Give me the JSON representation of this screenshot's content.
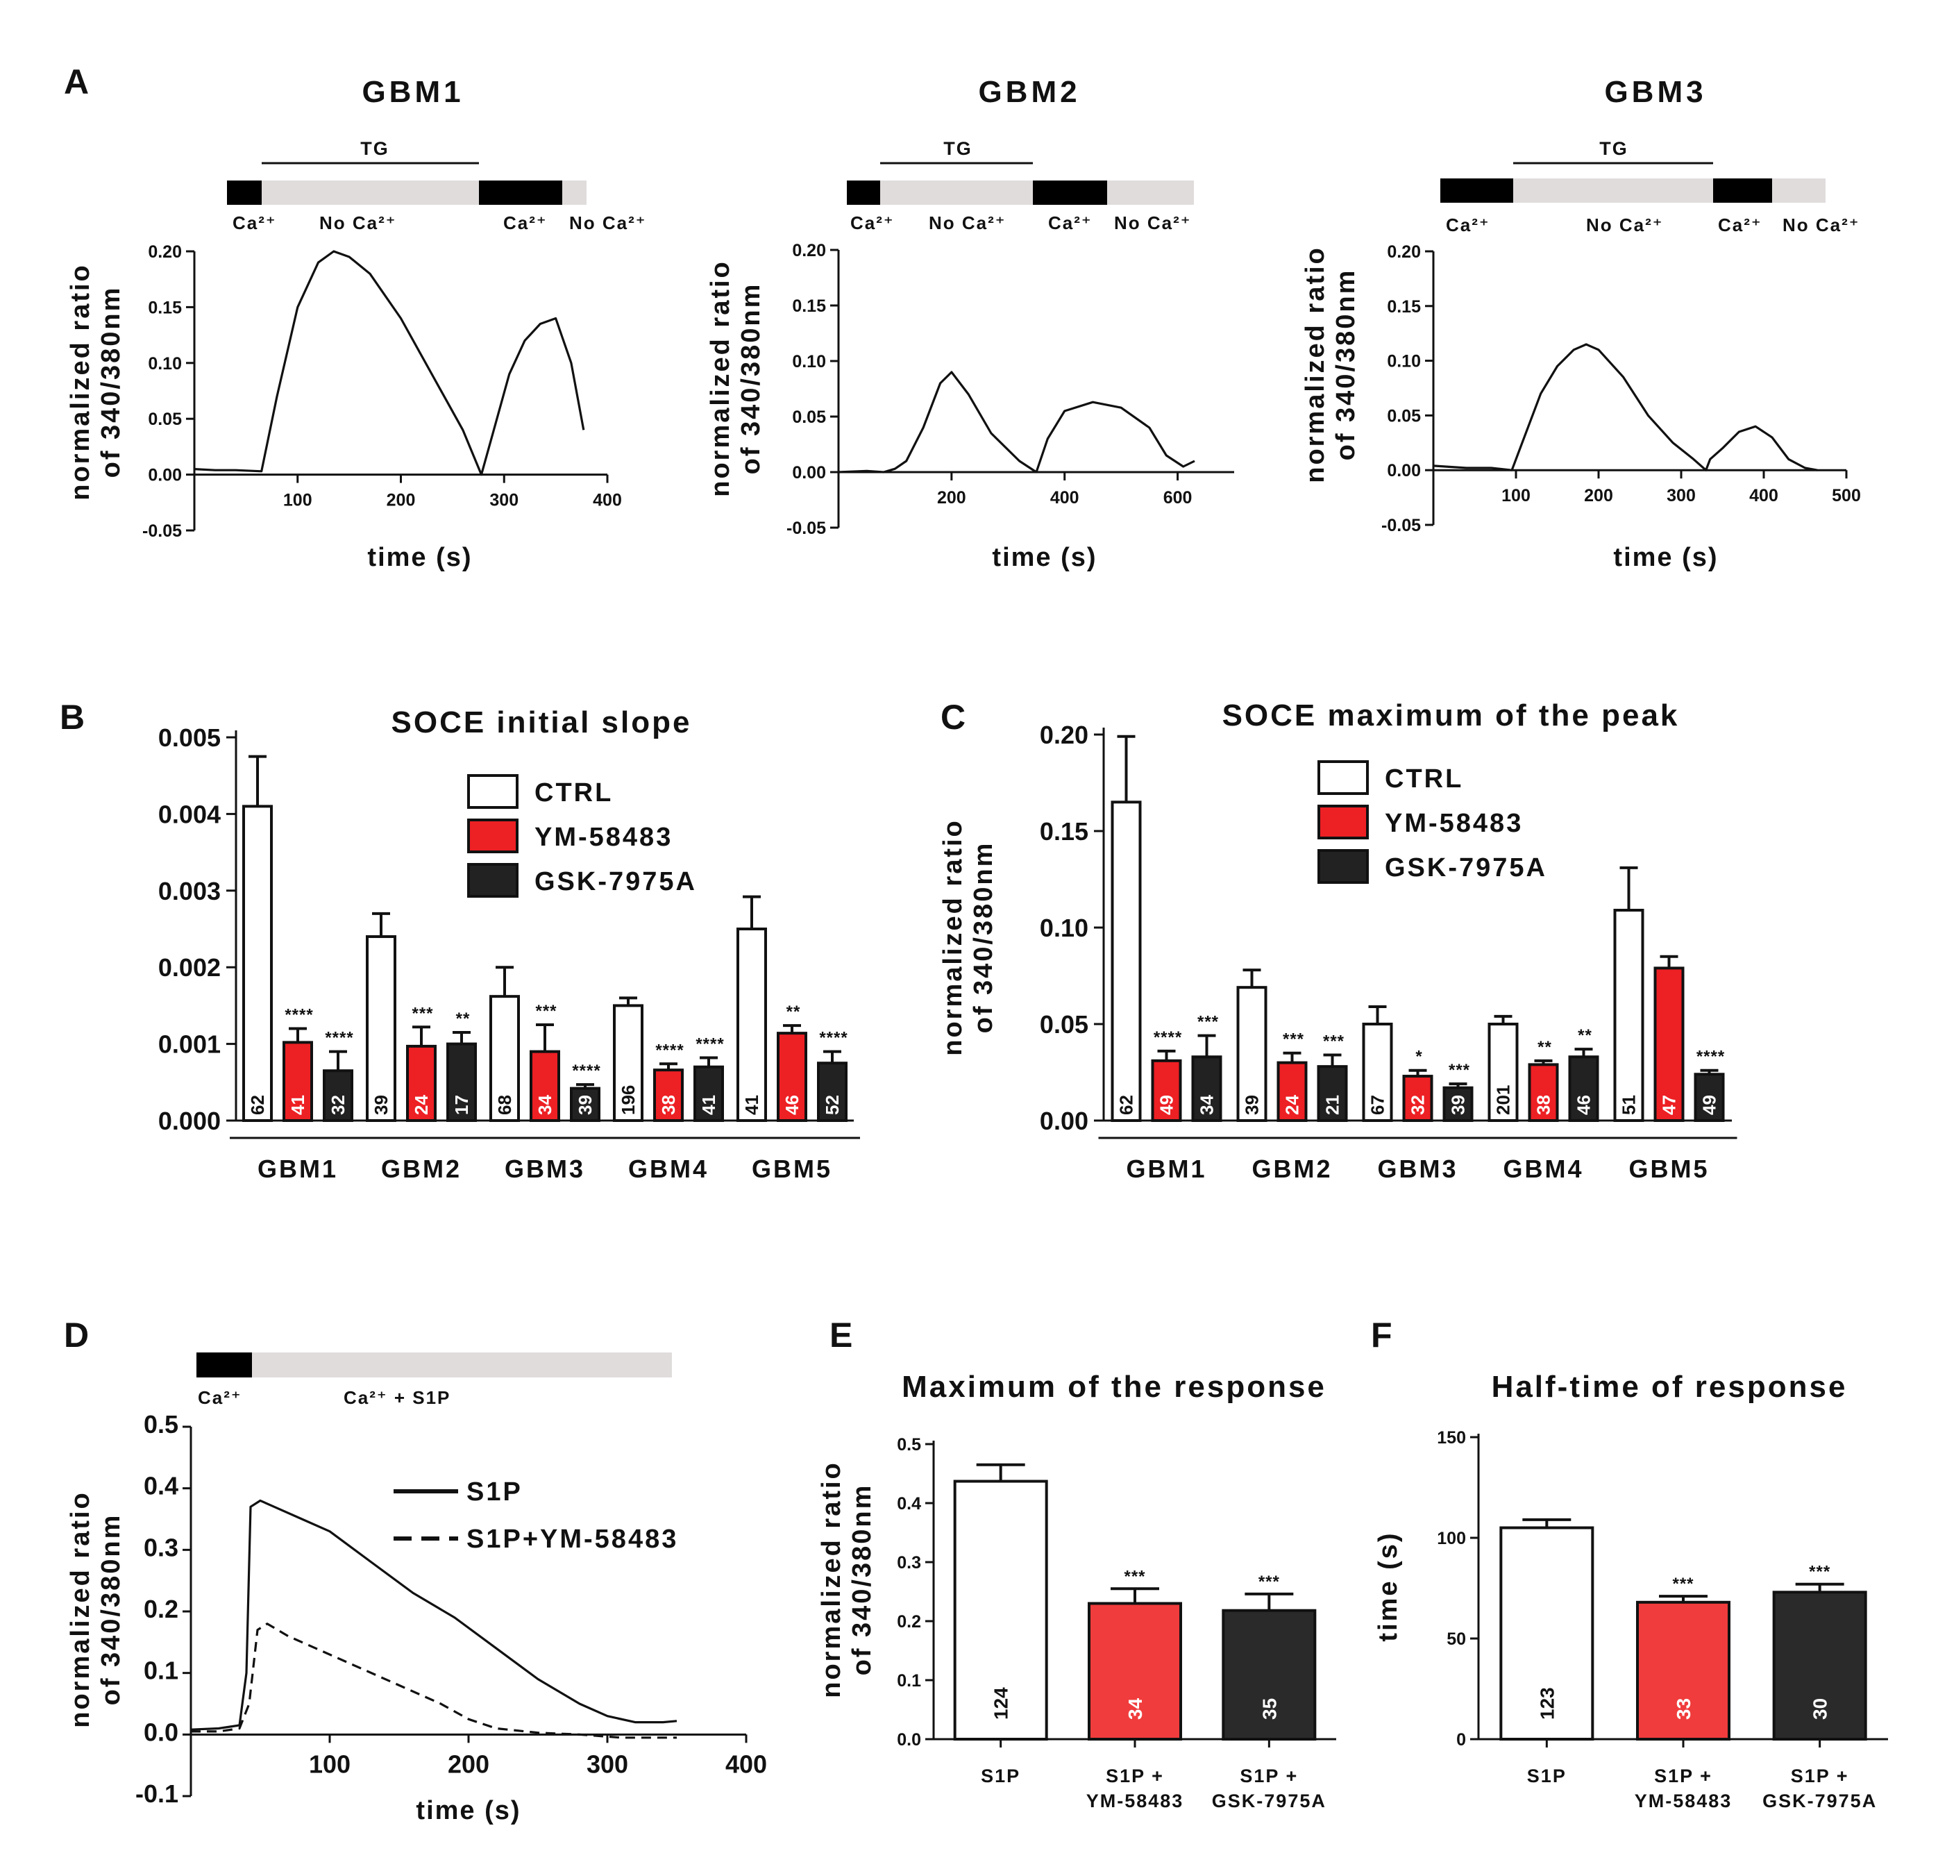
{
  "panel_labels": [
    "A",
    "B",
    "C",
    "D",
    "E",
    "F"
  ],
  "chart_data": [
    {
      "id": "A1",
      "type": "line",
      "title": "GBM1",
      "ylabel_lines": [
        "normalized ratio",
        "of 340/380nm"
      ],
      "xlabel": "time (s)",
      "ylim": [
        -0.05,
        0.2
      ],
      "xlim": [
        0,
        400
      ],
      "yticks": [
        "0.20",
        "0.15",
        "0.10",
        "0.05",
        "0.00",
        "-0.05"
      ],
      "ytick_values": [
        0.2,
        0.15,
        0.1,
        0.05,
        0,
        -0.05
      ],
      "xticks": [
        "100",
        "200",
        "300",
        "400"
      ],
      "xtick_values": [
        100,
        200,
        300,
        400
      ],
      "protocol": {
        "tg": "TG",
        "labels": [
          "Ca²⁺",
          "No Ca²⁺",
          "Ca²⁺",
          "No Ca²⁺"
        ]
      },
      "series": [
        {
          "name": "trace",
          "x": [
            0,
            20,
            40,
            65,
            80,
            100,
            120,
            135,
            150,
            170,
            200,
            230,
            260,
            278,
            290,
            305,
            320,
            335,
            350,
            365,
            377
          ],
          "y": [
            0.005,
            0.004,
            0.004,
            0.003,
            0.07,
            0.15,
            0.19,
            0.2,
            0.195,
            0.18,
            0.14,
            0.09,
            0.04,
            0.0,
            0.04,
            0.09,
            0.12,
            0.135,
            0.14,
            0.1,
            0.04
          ]
        }
      ]
    },
    {
      "id": "A2",
      "type": "line",
      "title": "GBM2",
      "ylabel_lines": [
        "normalized ratio",
        "of 340/380nm"
      ],
      "xlabel": "time (s)",
      "ylim": [
        -0.05,
        0.2
      ],
      "xlim": [
        0,
        700
      ],
      "yticks": [
        "0.20",
        "0.15",
        "0.10",
        "0.05",
        "0.00",
        "-0.05"
      ],
      "ytick_values": [
        0.2,
        0.15,
        0.1,
        0.05,
        0,
        -0.05
      ],
      "xticks": [
        "200",
        "400",
        "600"
      ],
      "xtick_values": [
        200,
        400,
        600
      ],
      "protocol": {
        "tg": "TG",
        "labels": [
          "Ca²⁺",
          "No Ca²⁺",
          "Ca²⁺",
          "No Ca²⁺"
        ]
      },
      "series": [
        {
          "name": "trace",
          "x": [
            0,
            50,
            80,
            100,
            120,
            150,
            180,
            200,
            230,
            270,
            320,
            350,
            370,
            400,
            450,
            500,
            550,
            580,
            610,
            630
          ],
          "y": [
            0.0,
            0.001,
            0.0,
            0.003,
            0.01,
            0.04,
            0.08,
            0.09,
            0.07,
            0.035,
            0.01,
            0.0,
            0.03,
            0.055,
            0.063,
            0.058,
            0.04,
            0.015,
            0.005,
            0.01
          ]
        }
      ]
    },
    {
      "id": "A3",
      "type": "line",
      "title": "GBM3",
      "ylabel_lines": [
        "normalized ratio",
        "of 340/380nm"
      ],
      "xlabel": "time (s)",
      "ylim": [
        -0.05,
        0.2
      ],
      "xlim": [
        0,
        500
      ],
      "yticks": [
        "0.20",
        "0.15",
        "0.10",
        "0.05",
        "0.00",
        "-0.05"
      ],
      "ytick_values": [
        0.2,
        0.15,
        0.1,
        0.05,
        0,
        -0.05
      ],
      "xticks": [
        "100",
        "200",
        "300",
        "400",
        "500"
      ],
      "xtick_values": [
        100,
        200,
        300,
        400,
        500
      ],
      "protocol": {
        "tg": "TG",
        "labels": [
          "Ca²⁺",
          "No Ca²⁺",
          "Ca²⁺",
          "No Ca²⁺"
        ]
      },
      "series": [
        {
          "name": "trace",
          "x": [
            0,
            40,
            70,
            95,
            110,
            130,
            150,
            170,
            185,
            200,
            230,
            260,
            290,
            315,
            330,
            335,
            350,
            370,
            390,
            410,
            430,
            450,
            465
          ],
          "y": [
            0.004,
            0.002,
            0.002,
            0.0,
            0.03,
            0.07,
            0.095,
            0.11,
            0.115,
            0.11,
            0.085,
            0.05,
            0.025,
            0.01,
            0.0,
            0.01,
            0.02,
            0.035,
            0.04,
            0.03,
            0.01,
            0.002,
            0.0
          ]
        }
      ]
    },
    {
      "id": "B",
      "type": "bar",
      "title": "SOCE initial slope",
      "ylabel_lines": [],
      "ylim": [
        0,
        0.005
      ],
      "yticks": [
        "0.005",
        "0.004",
        "0.003",
        "0.002",
        "0.001",
        "0.000"
      ],
      "ytick_values": [
        0.005,
        0.004,
        0.003,
        0.002,
        0.001,
        0
      ],
      "categories": [
        "GBM1",
        "GBM2",
        "GBM3",
        "GBM4",
        "GBM5"
      ],
      "legend": [
        "CTRL",
        "YM-58483",
        "GSK-7975A"
      ],
      "series": [
        {
          "name": "CTRL",
          "color": "#ffffff",
          "values": [
            0.0041,
            0.0024,
            0.00162,
            0.0015,
            0.0025
          ],
          "errors": [
            0.00065,
            0.0003,
            0.00038,
            0.0001,
            0.00042
          ],
          "n": [
            "62",
            "39",
            "68",
            "196",
            "41"
          ],
          "sig": [
            "",
            "",
            "",
            "",
            ""
          ]
        },
        {
          "name": "YM-58483",
          "color": "#ed2024",
          "values": [
            0.00102,
            0.00097,
            0.0009,
            0.00066,
            0.00114
          ],
          "errors": [
            0.00018,
            0.00025,
            0.00035,
            8e-05,
            0.0001
          ],
          "n": [
            "41",
            "24",
            "34",
            "38",
            "46"
          ],
          "sig": [
            "****",
            "***",
            "***",
            "****",
            "**"
          ]
        },
        {
          "name": "GSK-7975A",
          "color": "#222222",
          "values": [
            0.00065,
            0.001,
            0.00042,
            0.0007,
            0.00075
          ],
          "errors": [
            0.00025,
            0.00015,
            5e-05,
            0.00012,
            0.00015
          ],
          "n": [
            "32",
            "17",
            "39",
            "41",
            "52"
          ],
          "sig": [
            "****",
            "**",
            "****",
            "****",
            "****"
          ]
        }
      ]
    },
    {
      "id": "C",
      "type": "bar",
      "title": "SOCE maximum of the peak",
      "ylabel_lines": [
        "normalized ratio",
        "of 340/380nm"
      ],
      "ylim": [
        0,
        0.2
      ],
      "yticks": [
        "0.20",
        "0.15",
        "0.10",
        "0.05",
        "0.00"
      ],
      "ytick_values": [
        0.2,
        0.15,
        0.1,
        0.05,
        0
      ],
      "categories": [
        "GBM1",
        "GBM2",
        "GBM3",
        "GBM4",
        "GBM5"
      ],
      "legend": [
        "CTRL",
        "YM-58483",
        "GSK-7975A"
      ],
      "series": [
        {
          "name": "CTRL",
          "color": "#ffffff",
          "values": [
            0.165,
            0.069,
            0.05,
            0.05,
            0.109
          ],
          "errors": [
            0.034,
            0.009,
            0.009,
            0.004,
            0.022
          ],
          "n": [
            "62",
            "39",
            "67",
            "201",
            "51"
          ],
          "sig": [
            "",
            "",
            "",
            "",
            ""
          ]
        },
        {
          "name": "YM-58483",
          "color": "#ed2024",
          "values": [
            0.031,
            0.03,
            0.023,
            0.029,
            0.079
          ],
          "errors": [
            0.005,
            0.005,
            0.003,
            0.002,
            0.006
          ],
          "n": [
            "49",
            "24",
            "32",
            "38",
            "47"
          ],
          "sig": [
            "****",
            "***",
            "*",
            "**",
            ""
          ]
        },
        {
          "name": "GSK-7975A",
          "color": "#222222",
          "values": [
            0.033,
            0.028,
            0.017,
            0.033,
            0.024
          ],
          "errors": [
            0.011,
            0.006,
            0.002,
            0.004,
            0.002
          ],
          "n": [
            "34",
            "21",
            "39",
            "46",
            "49"
          ],
          "sig": [
            "***",
            "***",
            "***",
            "**",
            "****"
          ]
        }
      ]
    },
    {
      "id": "D",
      "type": "line",
      "ylabel_lines": [
        "normalized ratio",
        "of 340/380nm"
      ],
      "xlabel": "time (s)",
      "ylim": [
        -0.1,
        0.5
      ],
      "xlim": [
        0,
        400
      ],
      "yticks": [
        "0.5",
        "0.4",
        "0.3",
        "0.2",
        "0.1",
        "0.0",
        "-0.1"
      ],
      "ytick_values": [
        0.5,
        0.4,
        0.3,
        0.2,
        0.1,
        0,
        -0.1
      ],
      "xticks": [
        "100",
        "200",
        "300",
        "400"
      ],
      "xtick_values": [
        100,
        200,
        300,
        400
      ],
      "protocol": {
        "labels": [
          "Ca²⁺",
          "Ca²⁺  + S1P"
        ]
      },
      "legend": [
        "S1P",
        "S1P+YM-58483"
      ],
      "series": [
        {
          "name": "S1P",
          "style": "solid",
          "x": [
            0,
            20,
            35,
            40,
            43,
            50,
            60,
            80,
            100,
            130,
            160,
            190,
            220,
            250,
            280,
            300,
            320,
            340,
            350
          ],
          "y": [
            0.008,
            0.01,
            0.015,
            0.1,
            0.37,
            0.38,
            0.37,
            0.35,
            0.33,
            0.28,
            0.23,
            0.19,
            0.14,
            0.09,
            0.05,
            0.03,
            0.02,
            0.02,
            0.022
          ]
        },
        {
          "name": "S1P+YM-58483",
          "style": "dashed",
          "x": [
            0,
            20,
            35,
            42,
            48,
            55,
            70,
            90,
            120,
            150,
            180,
            200,
            220,
            250,
            280,
            310,
            350
          ],
          "y": [
            0.005,
            0.005,
            0.01,
            0.05,
            0.17,
            0.18,
            0.16,
            0.14,
            0.11,
            0.08,
            0.05,
            0.025,
            0.01,
            0.003,
            0.0,
            -0.005,
            -0.005
          ]
        }
      ]
    },
    {
      "id": "E",
      "type": "bar",
      "title": "Maximum of the response",
      "ylabel_lines": [
        "normalized ratio",
        "of 340/380nm"
      ],
      "ylim": [
        0,
        0.5
      ],
      "yticks": [
        "0.5",
        "0.4",
        "0.3",
        "0.2",
        "0.1",
        "0.0"
      ],
      "ytick_values": [
        0.5,
        0.4,
        0.3,
        0.2,
        0.1,
        0
      ],
      "categories": [
        [
          "S1P"
        ],
        [
          "S1P +",
          "YM-58483"
        ],
        [
          "S1P +",
          "GSK-7975A"
        ]
      ],
      "values": [
        0.437,
        0.23,
        0.218
      ],
      "errors": [
        0.028,
        0.025,
        0.028
      ],
      "colors": [
        "#ffffff",
        "#f03c3c",
        "#2a2a2a"
      ],
      "n": [
        "124",
        "34",
        "35"
      ],
      "sig": [
        "",
        "***",
        "***"
      ]
    },
    {
      "id": "F",
      "type": "bar",
      "title": "Half-time of response",
      "ylabel_lines": [
        "time (s)"
      ],
      "ylim": [
        0,
        150
      ],
      "yticks": [
        "150",
        "100",
        "50",
        "0"
      ],
      "ytick_values": [
        150,
        100,
        50,
        0
      ],
      "categories": [
        [
          "S1P"
        ],
        [
          "S1P +",
          "YM-58483"
        ],
        [
          "S1P +",
          "GSK-7975A"
        ]
      ],
      "values": [
        105,
        68,
        73
      ],
      "errors": [
        4,
        3,
        4
      ],
      "colors": [
        "#ffffff",
        "#f03c3c",
        "#2a2a2a"
      ],
      "n": [
        "123",
        "33",
        "30"
      ],
      "sig": [
        "",
        "***",
        "***"
      ]
    }
  ]
}
